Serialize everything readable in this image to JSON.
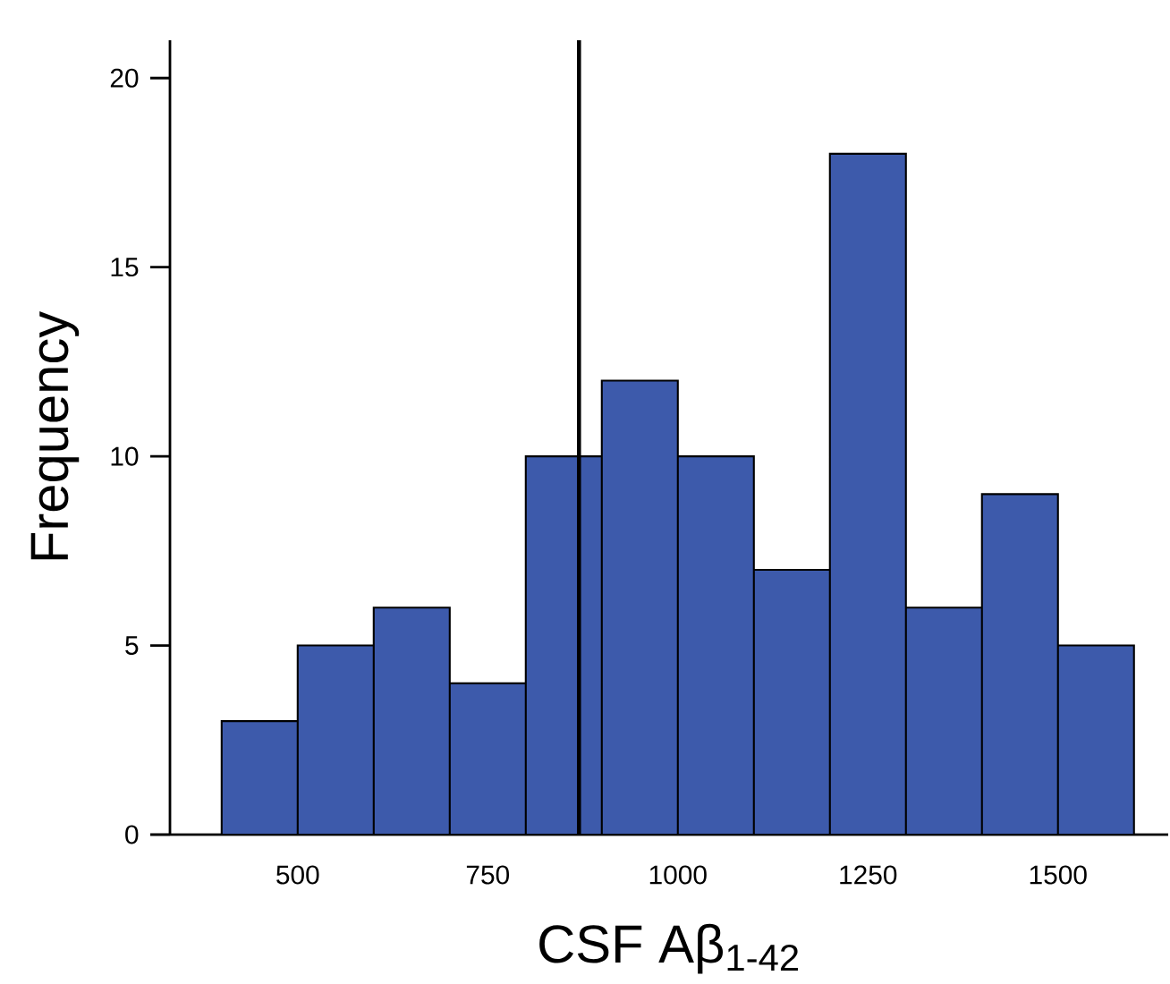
{
  "chart_data": {
    "type": "histogram",
    "xlabel": "CSF Aβ$_{1-42}$",
    "ylabel": "Frequency",
    "bins": [
      400,
      500,
      600,
      700,
      800,
      900,
      1000,
      1100,
      1200,
      1300,
      1400,
      1500,
      1600
    ],
    "values": [
      3,
      5,
      6,
      4,
      10,
      12,
      10,
      7,
      18,
      6,
      9,
      5
    ],
    "color": "#3d5aab",
    "xlim": [
      332,
      1645
    ],
    "ylim": [
      0,
      21
    ],
    "xticks": [
      500,
      750,
      1000,
      1250,
      1500
    ],
    "yticks": [
      0,
      5,
      10,
      15,
      20
    ],
    "ref_lines": [
      {
        "axis": "x",
        "value": 870,
        "color": "#000000"
      }
    ],
    "grid": false
  }
}
